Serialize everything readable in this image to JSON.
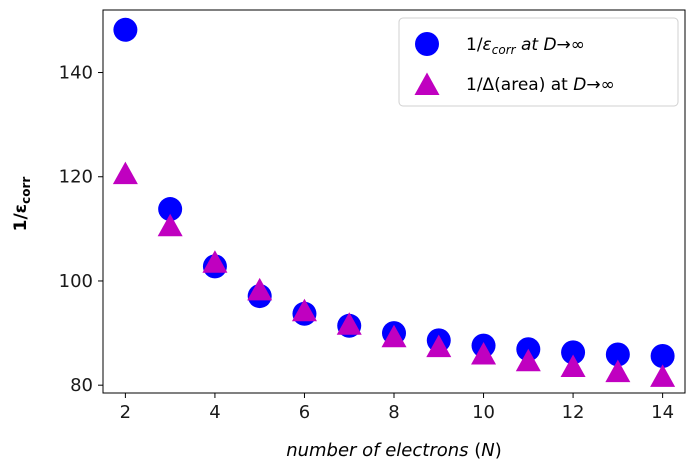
{
  "chart_data": {
    "type": "scatter",
    "xlabel": "number of electrons (N)",
    "ylabel": "1/ε_corr",
    "xlim": [
      1.5,
      14.5
    ],
    "ylim": [
      78.5,
      152
    ],
    "x_ticks": [
      2,
      4,
      6,
      8,
      10,
      12,
      14
    ],
    "y_ticks": [
      80,
      100,
      120,
      140
    ],
    "x_tick_labels": [
      "2",
      "4",
      "6",
      "8",
      "10",
      "12",
      "14"
    ],
    "y_tick_labels": [
      "80",
      "100",
      "120",
      "140"
    ],
    "grid": false,
    "legend_position": "top-right",
    "series": [
      {
        "name": "1/ε_corr at D→∞",
        "marker": "circle",
        "color": "#0000ff",
        "x": [
          2,
          3,
          4,
          5,
          6,
          7,
          8,
          9,
          10,
          11,
          12,
          13,
          14
        ],
        "y": [
          148.2,
          113.8,
          102.8,
          97.1,
          93.7,
          91.4,
          90.0,
          88.6,
          87.6,
          86.9,
          86.3,
          85.9,
          85.6
        ]
      },
      {
        "name": "1/Δ(area) at D→∞",
        "marker": "triangle",
        "color": "#c000c0",
        "x": [
          2,
          3,
          4,
          5,
          6,
          7,
          8,
          9,
          10,
          11,
          12,
          13,
          14
        ],
        "y": [
          120.5,
          110.5,
          103.5,
          98.2,
          94.2,
          91.6,
          89.2,
          87.3,
          85.9,
          84.6,
          83.5,
          82.5,
          81.6
        ]
      }
    ]
  }
}
